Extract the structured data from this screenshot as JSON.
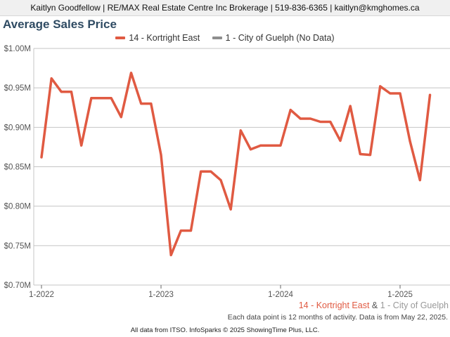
{
  "header": {
    "contact": "Kaitlyn Goodfellow | RE/MAX Real Estate Centre Inc Brokerage | 519-836-6365 | kaitlyn@kmghomes.ca"
  },
  "chart_data": {
    "type": "line",
    "title": "Average Sales Price",
    "legend": {
      "placement": "top-center",
      "entries": [
        "14 - Kortright East",
        "1 - City of Guelph (No Data)"
      ]
    },
    "ylim": [
      0.7,
      1.0
    ],
    "y_ticks": [
      {
        "value": 0.7,
        "label": "$0.70M"
      },
      {
        "value": 0.75,
        "label": "$0.75M"
      },
      {
        "value": 0.8,
        "label": "$0.80M"
      },
      {
        "value": 0.85,
        "label": "$0.85M"
      },
      {
        "value": 0.9,
        "label": "$0.90M"
      },
      {
        "value": 0.95,
        "label": "$0.95M"
      },
      {
        "value": 1.0,
        "label": "$1.00M"
      }
    ],
    "x_ticks": [
      "1-2022",
      "1-2023",
      "1-2024",
      "1-2025"
    ],
    "grid": "horizontal",
    "series": [
      {
        "name": "14 - Kortright East",
        "color": "#e05a42",
        "x": [
          "1-2022",
          "2-2022",
          "3-2022",
          "4-2022",
          "5-2022",
          "6-2022",
          "7-2022",
          "8-2022",
          "9-2022",
          "10-2022",
          "11-2022",
          "12-2022",
          "1-2023",
          "2-2023",
          "3-2023",
          "4-2023",
          "5-2023",
          "6-2023",
          "7-2023",
          "8-2023",
          "9-2023",
          "10-2023",
          "11-2023",
          "12-2023",
          "1-2024",
          "2-2024",
          "3-2024",
          "4-2024",
          "5-2024",
          "6-2024",
          "7-2024",
          "8-2024",
          "9-2024",
          "10-2024",
          "11-2024",
          "12-2024",
          "1-2025",
          "2-2025",
          "3-2025",
          "4-2025"
        ],
        "values": [
          0.862,
          0.962,
          0.945,
          0.945,
          0.877,
          0.937,
          0.937,
          0.937,
          0.913,
          0.969,
          0.93,
          0.93,
          0.865,
          0.738,
          0.769,
          0.769,
          0.844,
          0.844,
          0.833,
          0.796,
          0.896,
          0.872,
          0.877,
          0.877,
          0.877,
          0.922,
          0.911,
          0.911,
          0.907,
          0.907,
          0.883,
          0.927,
          0.866,
          0.865,
          0.952,
          0.943,
          0.943,
          0.882,
          0.833,
          0.941
        ]
      }
    ],
    "bottom_legend": {
      "primary": "14 - Kortright East",
      "joiner": " & ",
      "secondary": "1 - City of Guelph",
      "primary_color": "#e05a42",
      "joiner_color": "#555555",
      "secondary_color": "#999999"
    },
    "legend_colors": {
      "kortright": "#e05a42",
      "guelph": "#8e8e8e"
    }
  },
  "footnote": "Each data point is 12 months of activity. Data is from May 22, 2025.",
  "credit": "All data from ITSO. InfoSparks © 2025 ShowingTime Plus, LLC."
}
